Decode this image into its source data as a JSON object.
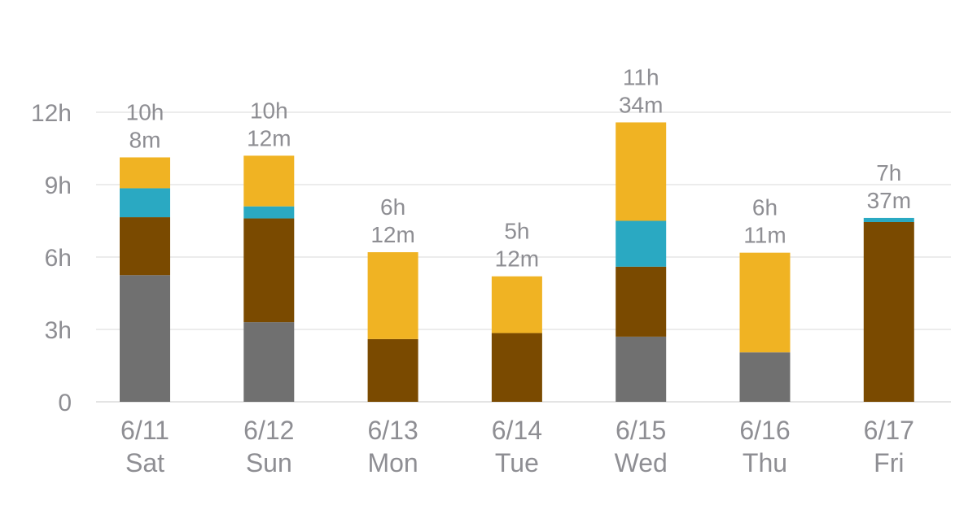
{
  "chart_data": {
    "type": "bar",
    "stacked": true,
    "title": "",
    "xlabel": "",
    "ylabel": "",
    "ylim": [
      0,
      12.5
    ],
    "y_unit": "hours",
    "y_ticks": [
      0,
      3,
      6,
      9,
      12
    ],
    "y_tick_labels": [
      "0",
      "3h",
      "6h",
      "9h",
      "12h"
    ],
    "grid": true,
    "legend": "none",
    "categories": [
      {
        "date": "6/11",
        "day": "Sat"
      },
      {
        "date": "6/12",
        "day": "Sun"
      },
      {
        "date": "6/13",
        "day": "Mon"
      },
      {
        "date": "6/14",
        "day": "Tue"
      },
      {
        "date": "6/15",
        "day": "Wed"
      },
      {
        "date": "6/16",
        "day": "Thu"
      },
      {
        "date": "6/17",
        "day": "Fri"
      }
    ],
    "totals": [
      {
        "hours_label": "10h",
        "minutes_label": "8m"
      },
      {
        "hours_label": "10h",
        "minutes_label": "12m"
      },
      {
        "hours_label": "6h",
        "minutes_label": "12m"
      },
      {
        "hours_label": "5h",
        "minutes_label": "12m"
      },
      {
        "hours_label": "11h",
        "minutes_label": "34m"
      },
      {
        "hours_label": "6h",
        "minutes_label": "11m"
      },
      {
        "hours_label": "7h",
        "minutes_label": "37m"
      }
    ],
    "series": [
      {
        "color": "#707070",
        "values": [
          5.25,
          3.3,
          0,
          0,
          2.7,
          2.05,
          0
        ]
      },
      {
        "color": "#7a4a00",
        "values": [
          2.4,
          4.3,
          2.6,
          2.85,
          2.9,
          0,
          7.45
        ]
      },
      {
        "color": "#2aa9c2",
        "values": [
          1.2,
          0.5,
          0,
          0,
          1.9,
          0,
          0.17
        ]
      },
      {
        "color": "#f0b323",
        "values": [
          1.28,
          2.1,
          3.6,
          2.35,
          4.08,
          4.13,
          0
        ]
      }
    ]
  }
}
